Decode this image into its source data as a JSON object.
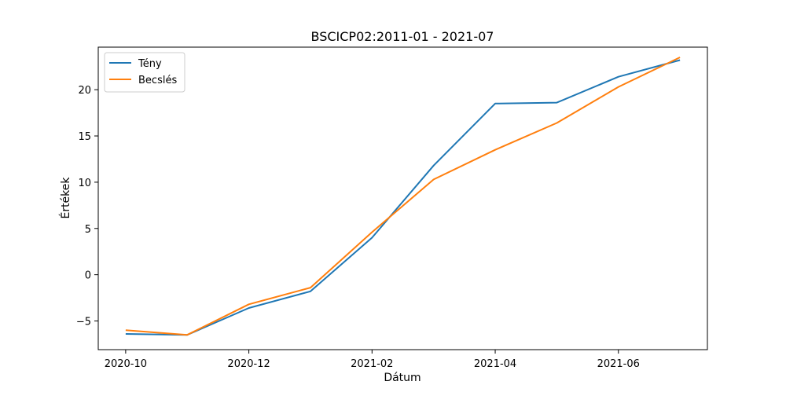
{
  "chart_data": {
    "type": "line",
    "title": "BSCICP02:2011-01 - 2021-07",
    "xlabel": "Dátum",
    "ylabel": "Értékek",
    "x": [
      "2020-10",
      "2020-11",
      "2020-12",
      "2021-01",
      "2021-02",
      "2021-03",
      "2021-04",
      "2021-05",
      "2021-06",
      "2021-07"
    ],
    "x_ticks": [
      "2020-10",
      "2020-12",
      "2021-02",
      "2021-04",
      "2021-06"
    ],
    "y_ticks": [
      -5,
      0,
      5,
      10,
      15,
      20
    ],
    "ylim": [
      -8.1,
      24.6
    ],
    "grid": false,
    "legend_position": "upper-left",
    "series": [
      {
        "name": "Tény",
        "color": "#1f77b4",
        "values": [
          -6.4,
          -6.5,
          -3.6,
          -1.8,
          4.0,
          11.8,
          18.5,
          18.6,
          21.4,
          23.2
        ]
      },
      {
        "name": "Becslés",
        "color": "#ff7f0e",
        "values": [
          -6.0,
          -6.5,
          -3.2,
          -1.4,
          4.6,
          10.3,
          13.5,
          16.4,
          20.3,
          23.5
        ]
      }
    ]
  }
}
